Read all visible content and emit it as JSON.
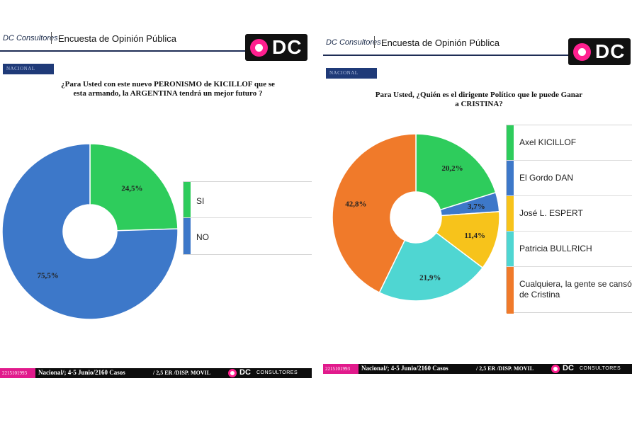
{
  "panels": [
    {
      "brand": "DC Consultores",
      "header_title": "Encuesta de Opinión Pública",
      "logo": "DC",
      "tag": "NACIONAL",
      "question": "¿Para Usted con este nuevo PERONISMO de KICILLOF que se esta armando, la ARGENTINA tendrá un mejor futuro ?",
      "footer": {
        "phone": "2215101993",
        "text": "Nacional/; 4-5 Junio/2160 Casos",
        "text2": "/ 2,5 ER /DISP. MOVIL",
        "logo_dc": "DC",
        "logo_cons": "CONSULTORES"
      }
    },
    {
      "brand": "DC Consultores",
      "header_title": "Encuesta de Opinión Pública",
      "logo": "DC",
      "tag": "NACIONAL",
      "question": "Para Usted, ¿Quién es el dirigente Político que le puede Ganar a CRISTINA?",
      "footer": {
        "phone": "2215101993",
        "text": "Nacional/; 4-5 Junio/2160 Casos",
        "text2": "/ 2,5 ER /DISP. MOVIL",
        "logo_dc": "DC",
        "logo_cons": "CONSULTORES"
      }
    }
  ],
  "chart_data": [
    {
      "type": "pie",
      "variant": "donut",
      "categories": [
        "SI",
        "NO"
      ],
      "values": [
        24.5,
        75.5
      ],
      "labels": [
        "24,5%",
        "75,5%"
      ],
      "colors": [
        "#2ecc5c",
        "#3d78c9"
      ],
      "legend_position": "right"
    },
    {
      "type": "pie",
      "variant": "donut",
      "categories": [
        "Axel KICILLOF",
        "El Gordo DAN",
        "José L. ESPERT",
        "Patricia BULLRICH",
        "Cualquiera, la gente se cansó de Cristina"
      ],
      "values": [
        20.2,
        3.7,
        11.4,
        21.9,
        42.8
      ],
      "labels": [
        "20,2%",
        "3,7%",
        "11,4%",
        "21,9%",
        "42,8%"
      ],
      "colors": [
        "#2ecc5c",
        "#3d78c9",
        "#f7c31b",
        "#4fd6d2",
        "#f07a2a"
      ],
      "legend_position": "right"
    }
  ]
}
